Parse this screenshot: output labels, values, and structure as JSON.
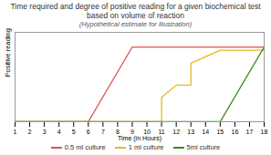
{
  "chart_data": {
    "type": "line",
    "title": "Time required and degree of positive reading for a given biochemical test based on volume of reaction",
    "subtitle": "(Hypothetical estimate for illustration)",
    "xlabel": "Time (in Hours)",
    "ylabel": "Positive reading",
    "xlim": [
      1,
      18
    ],
    "ylim": [
      0,
      1.1
    ],
    "xticks": [
      1,
      2,
      3,
      4,
      5,
      6,
      7,
      8,
      9,
      10,
      11,
      12,
      13,
      14,
      15,
      16,
      17,
      18
    ],
    "yticks": [],
    "tick_labels": "x",
    "legend": "bottom",
    "series": [
      {
        "name": "0.5 ml culture",
        "color": "#e05050",
        "x": [
          1,
          6,
          9,
          15,
          18
        ],
        "values": [
          0,
          0,
          0.92,
          0.92,
          0.92
        ]
      },
      {
        "name": "1 ml culture",
        "color": "#e8b820",
        "x": [
          1,
          11,
          11,
          12,
          13,
          13,
          15,
          18
        ],
        "values": [
          0,
          0,
          0.3,
          0.45,
          0.45,
          0.72,
          0.88,
          0.88
        ]
      },
      {
        "name": "5ml culture",
        "color": "#3a8a20",
        "x": [
          1,
          15,
          18
        ],
        "values": [
          0,
          0,
          0.92
        ]
      }
    ]
  }
}
